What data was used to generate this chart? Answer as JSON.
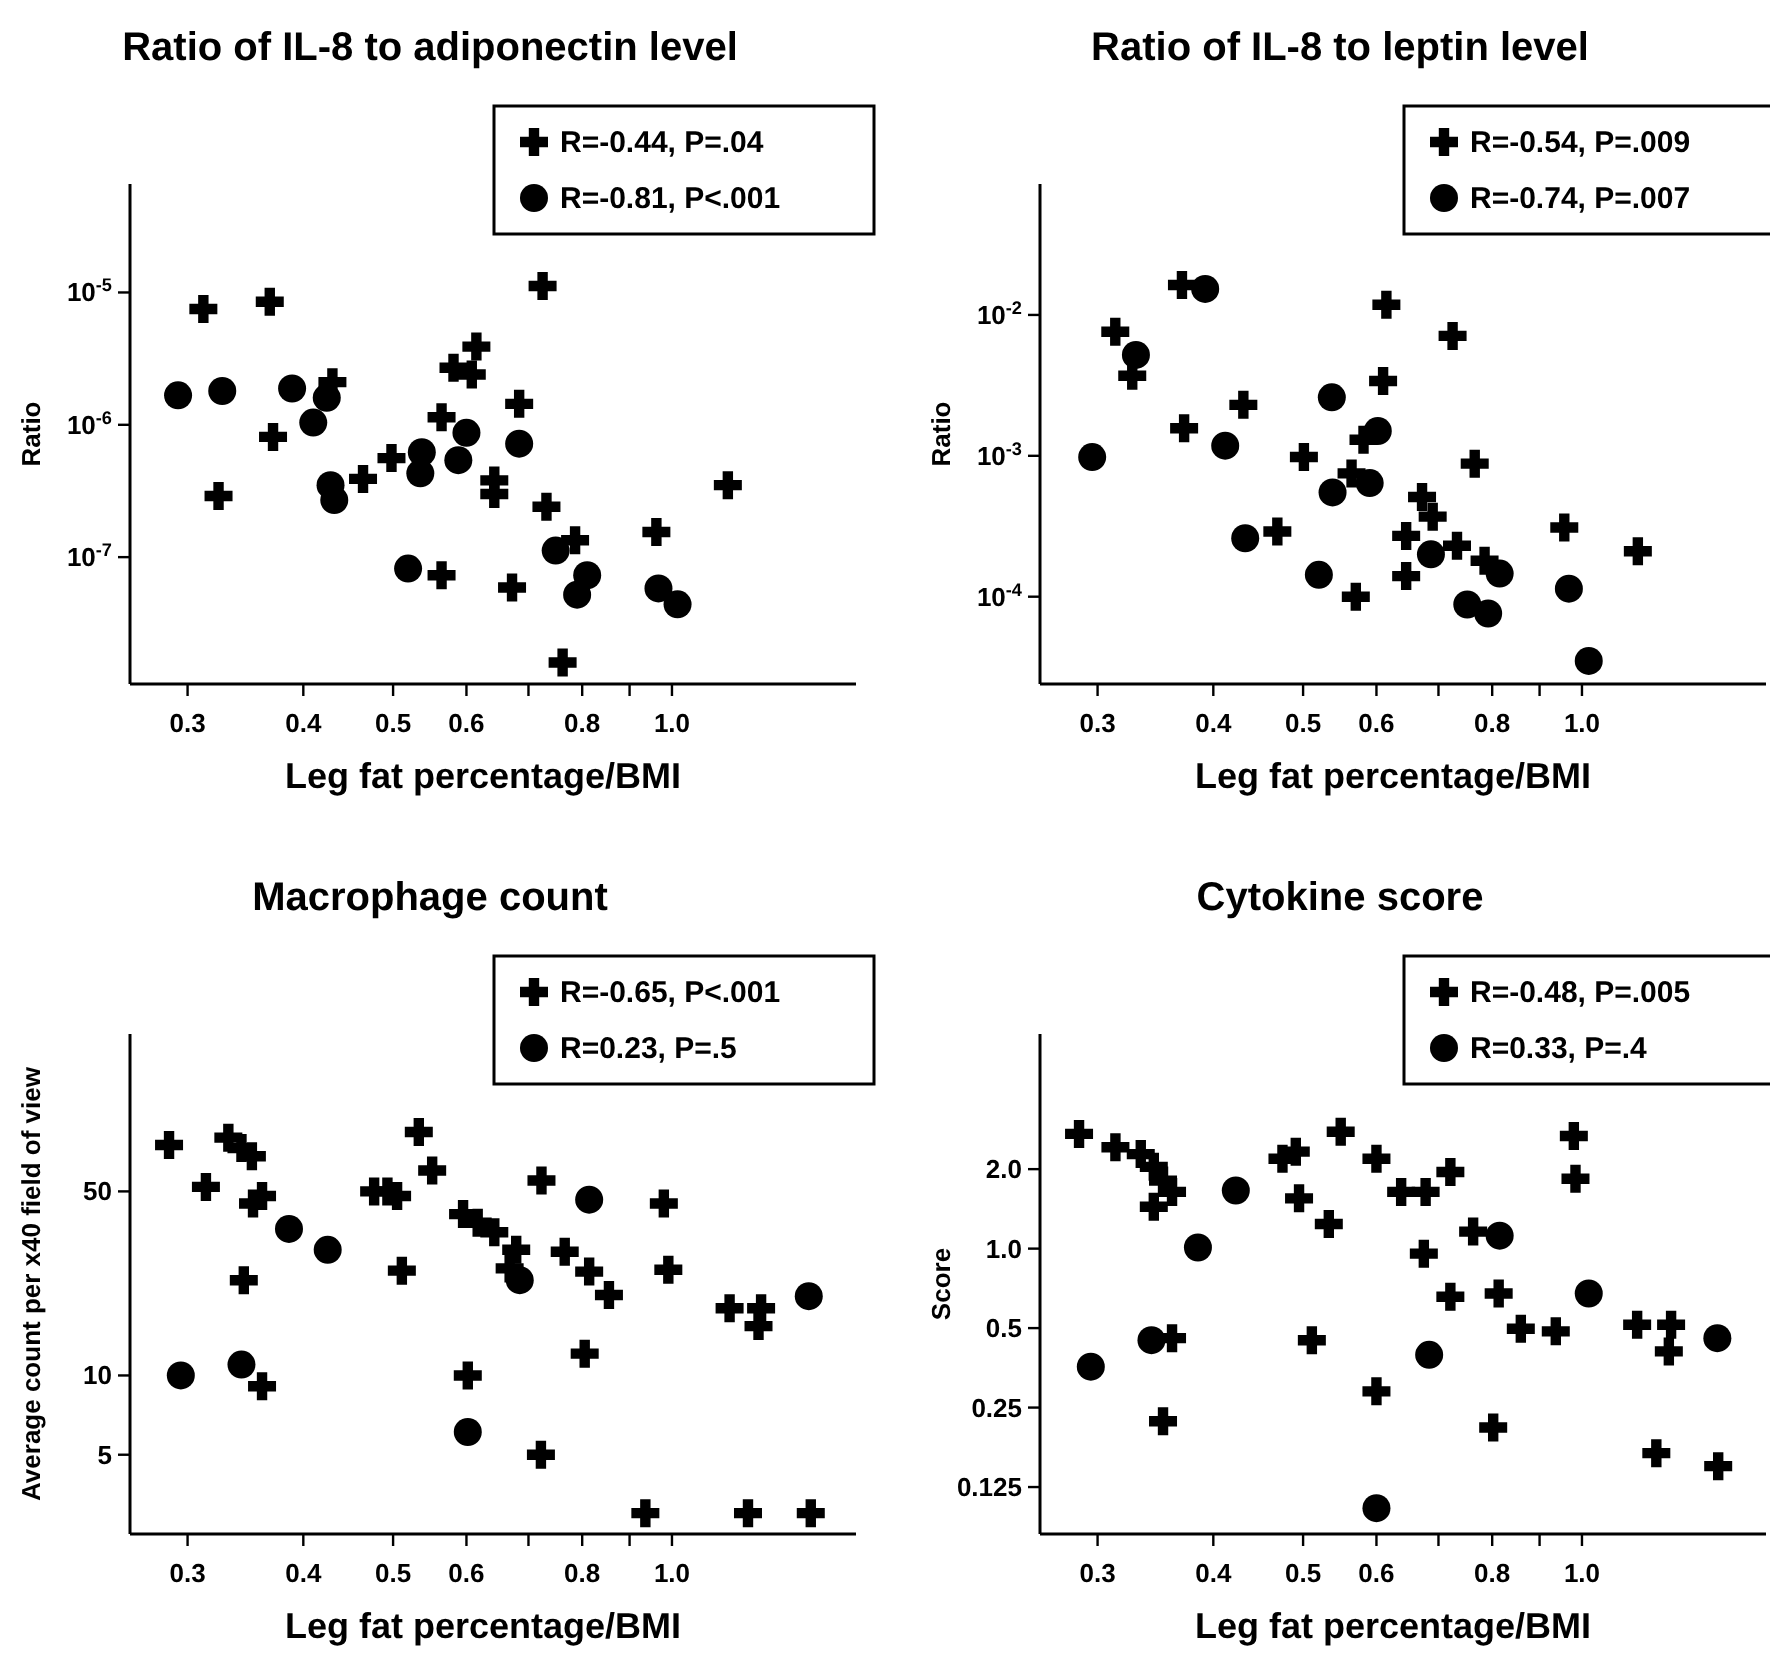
{
  "chart_data": [
    {
      "type": "scatter",
      "title": "Ratio of IL-8 to adiponectin level",
      "xlabel": "Leg fat percentage/BMI",
      "ylabel": "Ratio",
      "log": "xy",
      "legend": "top right",
      "xlim": [
        0.26,
        1.58
      ],
      "xticks": [
        0.3,
        0.4,
        0.5,
        0.6,
        {
          "value": 0.7,
          "label": null
        },
        0.8,
        {
          "value": 0.9,
          "label": null
        },
        {
          "value": 1,
          "label": "1.0"
        }
      ],
      "ylim": [
        1.1e-08,
        6.6e-05
      ],
      "yticks": [
        {
          "value": 1e-07,
          "label": "10$^{-7}$"
        },
        {
          "value": 1e-06,
          "label": "10$^{-6}$"
        },
        {
          "value": 1e-05,
          "label": "10$^{-5}$"
        }
      ],
      "series": [
        {
          "name": "R=-0.44, P=.04",
          "color": "#000000",
          "marker": "cross",
          "x": [
            0.312,
            0.368,
            0.324,
            0.371,
            0.43,
            0.464,
            0.498,
            0.564,
            0.564,
            0.581,
            0.615,
            0.608,
            0.643,
            0.643,
            0.684,
            0.672,
            0.725,
            0.732,
            0.786,
            0.762,
            0.962,
            1.149
          ],
          "values": [
            7.5e-06,
            8.5e-06,
            2.9e-07,
            8.1e-07,
            2.1e-06,
            3.9e-07,
            5.6e-07,
            1.14e-06,
            7.3e-08,
            2.7e-06,
            3.9e-06,
            2.4e-06,
            3.8e-07,
            3e-07,
            1.44e-06,
            5.9e-08,
            1.12e-05,
            2.4e-07,
            1.34e-07,
            1.6e-08,
            1.55e-07,
            3.5e-07
          ]
        },
        {
          "name": "R=-0.81, P<.001",
          "color": "#000000",
          "marker": "circle",
          "x": [
            0.293,
            0.327,
            0.389,
            0.41,
            0.424,
            0.428,
            0.432,
            0.519,
            0.537,
            0.535,
            0.588,
            0.6,
            0.684,
            0.749,
            0.79,
            0.81,
            0.967,
            1.014
          ],
          "values": [
            1.67e-06,
            1.8e-06,
            1.88e-06,
            1.04e-06,
            1.6e-06,
            3.5e-07,
            2.7e-07,
            8.2e-08,
            6.2e-07,
            4.3e-07,
            5.4e-07,
            8.7e-07,
            7.2e-07,
            1.12e-07,
            5.2e-08,
            7.3e-08,
            5.8e-08,
            4.4e-08
          ]
        }
      ]
    },
    {
      "type": "scatter",
      "title": "Ratio of IL-8 to leptin level",
      "xlabel": "Leg fat percentage/BMI",
      "ylabel": "Ratio",
      "log": "xy",
      "legend": "top right",
      "xlim": [
        0.26,
        1.58
      ],
      "xticks": [
        0.3,
        0.4,
        0.5,
        0.6,
        {
          "value": 0.7,
          "label": null
        },
        0.8,
        {
          "value": 0.9,
          "label": null
        },
        {
          "value": 1,
          "label": "1.0"
        }
      ],
      "ylim": [
        2.4e-05,
        0.085
      ],
      "yticks": [
        {
          "value": 0.0001,
          "label": "10$^{-4}$"
        },
        {
          "value": 0.001,
          "label": "10$^{-3}$"
        },
        {
          "value": 0.01,
          "label": "10$^{-2}$"
        }
      ],
      "series": [
        {
          "name": "R=-0.54, P=.009",
          "color": "#000000",
          "marker": "cross",
          "x": [
            0.3135,
            0.327,
            0.37,
            0.372,
            0.431,
            0.469,
            0.501,
            0.564,
            0.581,
            0.57,
            0.615,
            0.61,
            0.725,
            0.766,
            0.672,
            0.69,
            0.646,
            0.646,
            0.733,
            0.785,
            0.957,
            1.149
          ],
          "values": [
            0.0076,
            0.0037,
            0.0163,
            0.00157,
            0.0023,
            0.00029,
            0.00098,
            0.00075,
            0.0013,
            0.0001,
            0.0118,
            0.0034,
            0.0071,
            0.00088,
            0.00051,
            0.00037,
            0.00027,
            0.00014,
            0.00023,
            0.00018,
            0.00031,
            0.00021
          ]
        },
        {
          "name": "R=-0.74, P=.007",
          "color": "#000000",
          "marker": "circle",
          "x": [
            0.296,
            0.33,
            0.392,
            0.412,
            0.433,
            0.52,
            0.537,
            0.538,
            0.59,
            0.602,
            0.687,
            0.752,
            0.792,
            0.815,
            0.968,
            1.017
          ],
          "values": [
            0.00098,
            0.0052,
            0.0153,
            0.00118,
            0.00026,
            0.000143,
            0.0026,
            0.00055,
            0.00064,
            0.0015,
            0.0002,
            8.8e-05,
            7.6e-05,
            0.000146,
            0.000114,
            3.5e-05
          ]
        }
      ]
    },
    {
      "type": "scatter",
      "title": "Macrophage count",
      "xlabel": "Leg fat percentage/BMI",
      "ylabel": "Average count per x40 field of view",
      "log": "xy",
      "legend": "top right",
      "xlim": [
        0.26,
        1.58
      ],
      "xticks": [
        0.3,
        0.4,
        0.5,
        0.6,
        {
          "value": 0.7,
          "label": null
        },
        0.8,
        {
          "value": 0.9,
          "label": null
        },
        {
          "value": 1,
          "label": "1.0"
        }
      ],
      "ylim": [
        2.5,
        198
      ],
      "yticks": [
        5,
        10,
        50
      ],
      "series": [
        {
          "name": "R=-0.65, P<.001",
          "color": "#000000",
          "marker": "cross",
          "x": [
            0.2865,
            0.314,
            0.332,
            0.343,
            0.352,
            0.353,
            0.361,
            0.345,
            0.361,
            0.477,
            0.493,
            0.505,
            0.533,
            0.551,
            0.511,
            0.595,
            0.617,
            0.643,
            0.679,
            0.668,
            0.602,
            0.723,
            0.722,
            0.766,
            0.814,
            0.855,
            0.805,
            0.98,
            0.991,
            0.936,
            1.154,
            1.248,
            1.24,
            1.208,
            1.412
          ],
          "values": [
            75,
            52,
            80,
            73,
            68,
            45,
            48,
            23,
            9.1,
            50,
            50,
            48,
            84,
            60,
            25,
            41,
            38,
            35,
            30,
            25.5,
            10,
            55,
            5.0,
            29.5,
            24.8,
            20.2,
            12.1,
            45,
            25.2,
            3.0,
            18,
            18,
            15.4,
            3.0,
            3.0
          ]
        },
        {
          "name": "R=0.23, P=.5",
          "color": "#000000",
          "marker": "circle",
          "x": [
            0.295,
            0.343,
            0.386,
            0.425,
            0.602,
            0.685,
            0.814,
            1.405
          ],
          "values": [
            10,
            11,
            36,
            30,
            6.1,
            23,
            46.5,
            20
          ]
        }
      ]
    },
    {
      "type": "scatter",
      "title": "Cytokine score",
      "xlabel": "Leg fat percentage/BMI",
      "ylabel": "Score",
      "log": "xy",
      "legend": "top right",
      "xlim": [
        0.26,
        1.58
      ],
      "xticks": [
        0.3,
        0.4,
        0.5,
        0.6,
        {
          "value": 0.7,
          "label": null
        },
        0.8,
        {
          "value": 0.9,
          "label": null
        },
        {
          "value": 1,
          "label": "1.0"
        }
      ],
      "ylim": [
        0.083,
        6.5
      ],
      "yticks": [
        0.125,
        0.25,
        0.5,
        {
          "value": 1,
          "label": "1.0"
        },
        {
          "value": 2,
          "label": "2.0"
        }
      ],
      "series": [
        {
          "name": "R=-0.48, P=.005",
          "color": "#000000",
          "marker": "cross",
          "x": [
            0.2865,
            0.3136,
            0.334,
            0.345,
            0.353,
            0.361,
            0.345,
            0.361,
            0.353,
            0.475,
            0.491,
            0.495,
            0.533,
            0.549,
            0.511,
            0.6,
            0.638,
            0.678,
            0.721,
            0.675,
            0.6,
            0.763,
            0.721,
            0.813,
            0.802,
            0.859,
            0.937,
            0.98,
            0.984,
            1.147,
            1.248,
            1.241,
            1.203,
            1.403
          ],
          "values": [
            2.72,
            2.42,
            2.28,
            2.04,
            1.81,
            1.64,
            1.44,
            0.458,
            0.222,
            2.19,
            2.33,
            1.55,
            1.24,
            2.77,
            0.45,
            2.19,
            1.64,
            1.64,
            1.95,
            0.957,
            0.288,
            1.16,
            0.657,
            0.676,
            0.21,
            0.497,
            0.486,
            2.67,
            1.84,
            0.515,
            0.515,
            0.408,
            0.168,
            0.15
          ]
        },
        {
          "name": "R=0.33, P=.4",
          "color": "#000000",
          "marker": "circle",
          "x": [
            0.295,
            0.343,
            0.385,
            0.423,
            0.6,
            0.684,
            0.815,
            1.017,
            1.4
          ],
          "values": [
            0.357,
            0.45,
            1.01,
            1.66,
            0.104,
            0.396,
            1.12,
            0.676,
            0.458
          ]
        }
      ]
    }
  ]
}
